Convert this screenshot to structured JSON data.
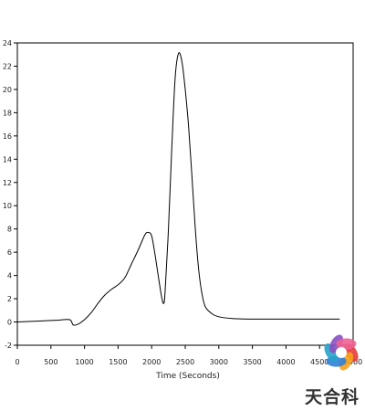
{
  "chart_data": {
    "type": "line",
    "title": "",
    "xlabel": "Time (Seconds)",
    "ylabel": "",
    "xlim": [
      0,
      5000
    ],
    "ylim": [
      -2,
      24
    ],
    "xticks": [
      0,
      500,
      1000,
      1500,
      2000,
      2500,
      3000,
      3500,
      4000,
      4500,
      5000
    ],
    "yticks": [
      -2,
      0,
      2,
      4,
      6,
      8,
      10,
      12,
      14,
      16,
      18,
      20,
      22,
      24
    ],
    "grid": false,
    "legend": "none",
    "series": [
      {
        "color": "#000000",
        "x": [
          0,
          200,
          400,
          600,
          780,
          830,
          900,
          1000,
          1100,
          1200,
          1300,
          1400,
          1500,
          1600,
          1700,
          1800,
          1900,
          1950,
          2000,
          2050,
          2100,
          2150,
          2180,
          2200,
          2250,
          2300,
          2350,
          2400,
          2450,
          2500,
          2550,
          2600,
          2650,
          2700,
          2750,
          2800,
          2900,
          3000,
          3200,
          3500,
          4000,
          4500,
          4800
        ],
        "y": [
          0,
          0.05,
          0.1,
          0.15,
          0.2,
          -0.25,
          -0.2,
          0.2,
          0.8,
          1.6,
          2.3,
          2.8,
          3.2,
          3.8,
          5.0,
          6.2,
          7.5,
          7.7,
          7.4,
          5.8,
          3.9,
          2.1,
          1.6,
          2.6,
          8.0,
          15.0,
          21.0,
          23.1,
          22.4,
          20.0,
          16.8,
          12.5,
          8.0,
          4.5,
          2.4,
          1.3,
          0.7,
          0.45,
          0.3,
          0.25,
          0.25,
          0.25,
          0.25
        ]
      }
    ]
  },
  "watermark": {
    "text": "天合科",
    "colors": [
      "#e63b3b",
      "#f7a21b",
      "#2f7fd6",
      "#27a3c9",
      "#8a4fc2",
      "#f06292"
    ]
  }
}
